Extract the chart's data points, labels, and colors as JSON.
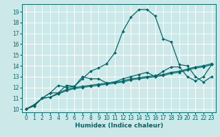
{
  "title": "",
  "xlabel": "Humidex (Indice chaleur)",
  "bg_color": "#cce8e8",
  "grid_color": "#ffffff",
  "line_color": "#006666",
  "xlim": [
    -0.5,
    23.5
  ],
  "ylim": [
    9.7,
    19.7
  ],
  "xticks": [
    0,
    1,
    2,
    3,
    4,
    5,
    6,
    7,
    8,
    9,
    10,
    11,
    12,
    13,
    14,
    15,
    16,
    17,
    18,
    19,
    20,
    21,
    22,
    23
  ],
  "yticks": [
    10,
    11,
    12,
    13,
    14,
    15,
    16,
    17,
    18,
    19
  ],
  "curves": [
    {
      "x": [
        0,
        1,
        2,
        3,
        4,
        5,
        6,
        7,
        8,
        9,
        10,
        11,
        12,
        13,
        14,
        15,
        16,
        17,
        18,
        19,
        20,
        21,
        22,
        23
      ],
      "y": [
        10.0,
        10.3,
        11.0,
        11.5,
        11.5,
        12.2,
        12.1,
        12.8,
        13.5,
        13.8,
        14.2,
        15.2,
        17.2,
        18.5,
        19.2,
        19.2,
        18.6,
        16.5,
        16.2,
        14.1,
        14.0,
        13.0,
        12.5,
        13.0
      ]
    },
    {
      "x": [
        0,
        1,
        2,
        3,
        4,
        5,
        6,
        7,
        8,
        9,
        10,
        11,
        12,
        13,
        14,
        15,
        16,
        17,
        18,
        19,
        20,
        21,
        22,
        23
      ],
      "y": [
        10.0,
        10.3,
        11.0,
        11.5,
        12.2,
        12.0,
        12.1,
        13.0,
        12.8,
        12.8,
        12.4,
        12.5,
        12.8,
        13.0,
        13.2,
        13.4,
        13.0,
        13.5,
        13.9,
        13.9,
        13.0,
        12.6,
        13.0,
        14.1
      ]
    },
    {
      "x": [
        0,
        1,
        2,
        3,
        4,
        5,
        6,
        7,
        8,
        9,
        10,
        11,
        12,
        13,
        14,
        15,
        16,
        17,
        18,
        19,
        20,
        21,
        22,
        23
      ],
      "y": [
        10.0,
        10.4,
        11.0,
        11.1,
        11.5,
        11.8,
        12.0,
        12.1,
        12.2,
        12.3,
        12.4,
        12.5,
        12.6,
        12.8,
        12.9,
        13.0,
        13.1,
        13.2,
        13.4,
        13.5,
        13.7,
        13.9,
        14.0,
        14.2
      ]
    },
    {
      "x": [
        0,
        1,
        2,
        3,
        4,
        5,
        6,
        7,
        8,
        9,
        10,
        11,
        12,
        13,
        14,
        15,
        16,
        17,
        18,
        19,
        20,
        21,
        22,
        23
      ],
      "y": [
        10.0,
        10.4,
        11.0,
        11.1,
        11.4,
        11.7,
        11.9,
        12.0,
        12.1,
        12.2,
        12.3,
        12.4,
        12.5,
        12.7,
        12.8,
        12.9,
        13.0,
        13.1,
        13.3,
        13.4,
        13.6,
        13.8,
        13.9,
        14.1
      ]
    }
  ],
  "marker": "D",
  "markersize": 2.0,
  "linewidth": 0.9,
  "xlabel_fontsize": 6.5,
  "tick_fontsize": 5.5
}
